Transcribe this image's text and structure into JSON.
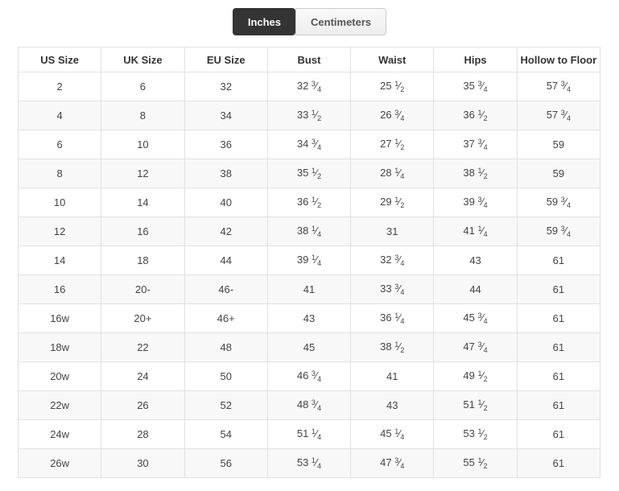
{
  "tabs": [
    {
      "label": "Inches",
      "active": true
    },
    {
      "label": "Centimeters",
      "active": false
    }
  ],
  "table": {
    "columns": [
      "US Size",
      "UK Size",
      "EU Size",
      "Bust",
      "Waist",
      "Hips",
      "Hollow to Floor"
    ],
    "rows": [
      [
        "2",
        "6",
        "32",
        "32 3/4",
        "25 1/2",
        "35 3/4",
        "57 3/4"
      ],
      [
        "4",
        "8",
        "34",
        "33 1/2",
        "26 3/4",
        "36 1/2",
        "57 3/4"
      ],
      [
        "6",
        "10",
        "36",
        "34 3/4",
        "27 1/2",
        "37 3/4",
        "59"
      ],
      [
        "8",
        "12",
        "38",
        "35 1/2",
        "28 1/4",
        "38 1/2",
        "59"
      ],
      [
        "10",
        "14",
        "40",
        "36 1/2",
        "29 1/2",
        "39 3/4",
        "59 3/4"
      ],
      [
        "12",
        "16",
        "42",
        "38 1/4",
        "31",
        "41 1/4",
        "59 3/4"
      ],
      [
        "14",
        "18",
        "44",
        "39 1/4",
        "32 3/4",
        "43",
        "61"
      ],
      [
        "16",
        "20-",
        "46-",
        "41",
        "33 3/4",
        "44",
        "61"
      ],
      [
        "16w",
        "20+",
        "46+",
        "43",
        "36 1/4",
        "45 3/4",
        "61"
      ],
      [
        "18w",
        "22",
        "48",
        "45",
        "38 1/2",
        "47 3/4",
        "61"
      ],
      [
        "20w",
        "24",
        "50",
        "46 3/4",
        "41",
        "49 1/2",
        "61"
      ],
      [
        "22w",
        "26",
        "52",
        "48 3/4",
        "43",
        "51 1/2",
        "61"
      ],
      [
        "24w",
        "28",
        "54",
        "51 1/4",
        "45 1/4",
        "53 1/2",
        "61"
      ],
      [
        "26w",
        "30",
        "56",
        "53 1/4",
        "47 3/4",
        "55 1/2",
        "61"
      ]
    ]
  },
  "colors": {
    "active_tab_bg": "#343434",
    "active_tab_text": "#ffffff",
    "inactive_tab_bg": "#f1f1f1",
    "inactive_tab_border": "#cccccc",
    "table_border": "#e1e1e1",
    "row_alt_bg": "#f8f8f8",
    "text": "#444444"
  }
}
